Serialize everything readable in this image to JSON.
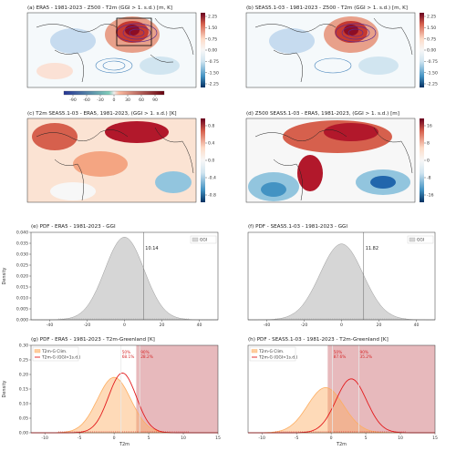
{
  "chart_data": [
    {
      "id": "a",
      "type": "heatmap",
      "title": "(a) ERA5 - 1981-2023 - Z500 - T2m (GGI > 1. s.d.) [m, K]",
      "colorbar_ticks": [
        "2.25",
        "1.50",
        "0.75",
        "0.00",
        "-0.75",
        "-1.50",
        "-2.25"
      ],
      "contour_ticks": [
        "-90",
        "-60",
        "-30",
        "0",
        "30",
        "60",
        "90"
      ]
    },
    {
      "id": "b",
      "type": "heatmap",
      "title": "(b) SEAS5.1-03 - 1981-2023 - Z500 - T2m (GGI > 1. s.d.) [m, K]",
      "colorbar_ticks": [
        "2.25",
        "1.50",
        "0.75",
        "0.00",
        "-0.75",
        "-1.50",
        "-2.25"
      ]
    },
    {
      "id": "c",
      "type": "heatmap",
      "title": "(c) T2m SEAS5.1-03 - ERA5, 1981-2023, (GGI > 1. s.d.) [K]",
      "colorbar_ticks": [
        "0.8",
        "0.4",
        "0.0",
        "-0.4",
        "-0.8"
      ]
    },
    {
      "id": "d",
      "type": "heatmap",
      "title": "(d) Z500 SEAS5.1-03 - ERA5, 1981-2023, (GGI > 1. s.d.) [m]",
      "colorbar_ticks": [
        "16",
        "8",
        "0",
        "-8",
        "-16"
      ]
    },
    {
      "id": "e",
      "type": "area",
      "title": "(e) PDF - ERA5 - 1981-2023 - GGI",
      "ylabel": "Density",
      "xlim": [
        -50,
        50
      ],
      "ylim": [
        0,
        0.04
      ],
      "xticks": [
        "-40",
        "-20",
        "0",
        "20",
        "40"
      ],
      "yticks": [
        "0.000",
        "0.005",
        "0.010",
        "0.015",
        "0.020",
        "0.025",
        "0.030",
        "0.035",
        "0.040"
      ],
      "series": [
        {
          "name": "GGI",
          "mean": 0,
          "sd": 10.5,
          "peak": 0.0378
        }
      ],
      "threshold": {
        "x": 10.14,
        "label": "10.14"
      }
    },
    {
      "id": "f",
      "type": "area",
      "title": "(f) PDF - SEAS5.1-03 - 1981-2023 - GGI",
      "xlim": [
        -50,
        50
      ],
      "ylim": [
        0,
        0.04
      ],
      "xticks": [
        "-40",
        "-20",
        "0",
        "20",
        "40"
      ],
      "series": [
        {
          "name": "GGI",
          "mean": 0,
          "sd": 11.5,
          "peak": 0.0347
        }
      ],
      "threshold": {
        "x": 11.82,
        "label": "11.82"
      }
    },
    {
      "id": "g",
      "type": "area",
      "title": "(g) PDF - ERA5 - 1981-2023 - T2m-Greenland [K]",
      "xlabel": "T2m",
      "ylabel": "Density",
      "xlim": [
        -12,
        15
      ],
      "ylim": [
        0,
        0.3
      ],
      "xticks": [
        "-10",
        "-5",
        "0",
        "5",
        "10",
        "15"
      ],
      "yticks": [
        "0.00",
        "0.05",
        "0.10",
        "0.15",
        "0.20",
        "0.25",
        "0.30"
      ],
      "series": [
        {
          "name": "T2m-G Clim.",
          "mean": 0,
          "sd": 2.4,
          "peak": 0.19
        },
        {
          "name": "T2m-G (GGI>1s.d.)",
          "mean": 1.2,
          "sd": 2.0,
          "peak": 0.205
        }
      ],
      "shade_from": 3.2,
      "markers": [
        {
          "x": 1.0,
          "pct": "50%",
          "val": "68.1%"
        },
        {
          "x": 3.7,
          "pct": "90%",
          "val": "28.2%"
        }
      ]
    },
    {
      "id": "h",
      "type": "area",
      "title": "(h) PDF - SEAS5.1-03 - 1981-2023 - T2m-Greenland [K]",
      "xlabel": "T2m",
      "xlim": [
        -12,
        15
      ],
      "ylim": [
        0,
        0.3
      ],
      "xticks": [
        "-10",
        "-5",
        "0",
        "5",
        "10",
        "15"
      ],
      "series": [
        {
          "name": "T2m-G Clim.",
          "mean": -0.8,
          "sd": 2.6,
          "peak": 0.155
        },
        {
          "name": "T2m-G (GGI>1s.d.)",
          "mean": 2.9,
          "sd": 2.2,
          "peak": 0.185
        }
      ],
      "shade_from": -0.5,
      "markers": [
        {
          "x": 0.2,
          "pct": "50%",
          "val": "87.6%"
        },
        {
          "x": 4.0,
          "pct": "90%",
          "val": "35.2%"
        }
      ]
    }
  ],
  "colors": {
    "warm": "#b2182b",
    "cool": "#2166ac",
    "ggi_fill": "#d6d6d6",
    "clim": "#fdae61",
    "ggi_line": "#e31a1c",
    "shade": "#c9636b"
  }
}
